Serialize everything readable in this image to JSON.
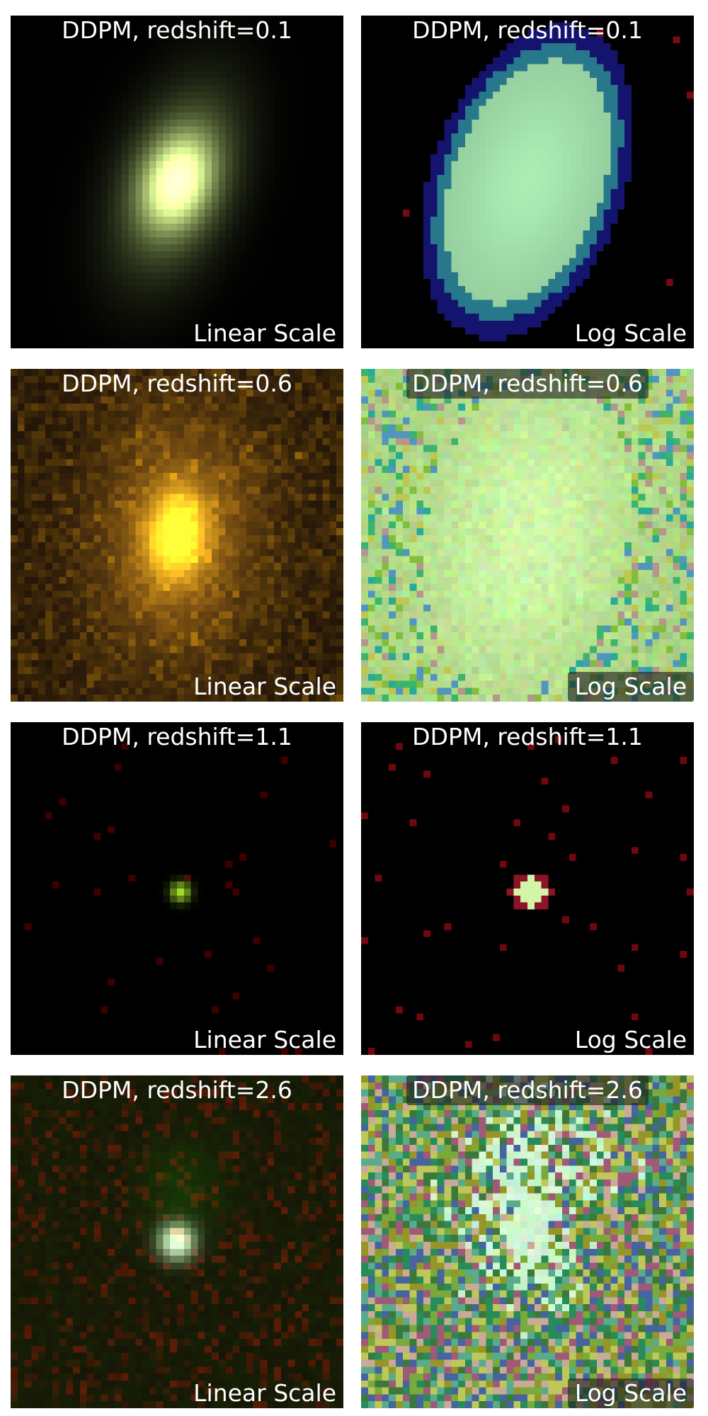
{
  "panels": [
    {
      "title": "DDPM, redshift=0.1",
      "label": "Linear Scale",
      "scale": "linear",
      "redshift": 0.1,
      "image_description_colors": {
        "core": "#e6f5a0",
        "halo": "#5a6a38",
        "background": "#000000"
      }
    },
    {
      "title": "DDPM, redshift=0.1",
      "label": "Log Scale",
      "scale": "log",
      "redshift": 0.1,
      "image_description_colors": {
        "core": "#b4f0bc",
        "edge": "#1a1a80",
        "background": "#000000"
      }
    },
    {
      "title": "DDPM, redshift=0.6",
      "label": "Linear Scale",
      "scale": "linear",
      "redshift": 0.6,
      "image_description_colors": {
        "core": "#f5d830",
        "halo": "#6a4a16",
        "background": "#2a1c0c"
      }
    },
    {
      "title": "DDPM, redshift=0.6",
      "label": "Log Scale",
      "scale": "log",
      "redshift": 0.6,
      "image_description_colors": {
        "core": "#ddf5b8",
        "background": "#b6d296"
      }
    },
    {
      "title": "DDPM, redshift=1.1",
      "label": "Linear Scale",
      "scale": "linear",
      "redshift": 1.1,
      "image_description_colors": {
        "core": "#d4f040",
        "background": "#000000"
      }
    },
    {
      "title": "DDPM, redshift=1.1",
      "label": "Log Scale",
      "scale": "log",
      "redshift": 1.1,
      "image_description_colors": {
        "core": "#d8f8b0",
        "background": "#000000"
      }
    },
    {
      "title": "DDPM, redshift=2.6",
      "label": "Linear Scale",
      "scale": "linear",
      "redshift": 2.6,
      "image_description_colors": {
        "core": "#d8ffe8",
        "background": "#1c1c08"
      }
    },
    {
      "title": "DDPM, redshift=2.6",
      "label": "Log Scale",
      "scale": "log",
      "redshift": 2.6,
      "image_description_colors": {
        "core": "#d0f8d0",
        "background": "#5a7a4a"
      }
    }
  ]
}
